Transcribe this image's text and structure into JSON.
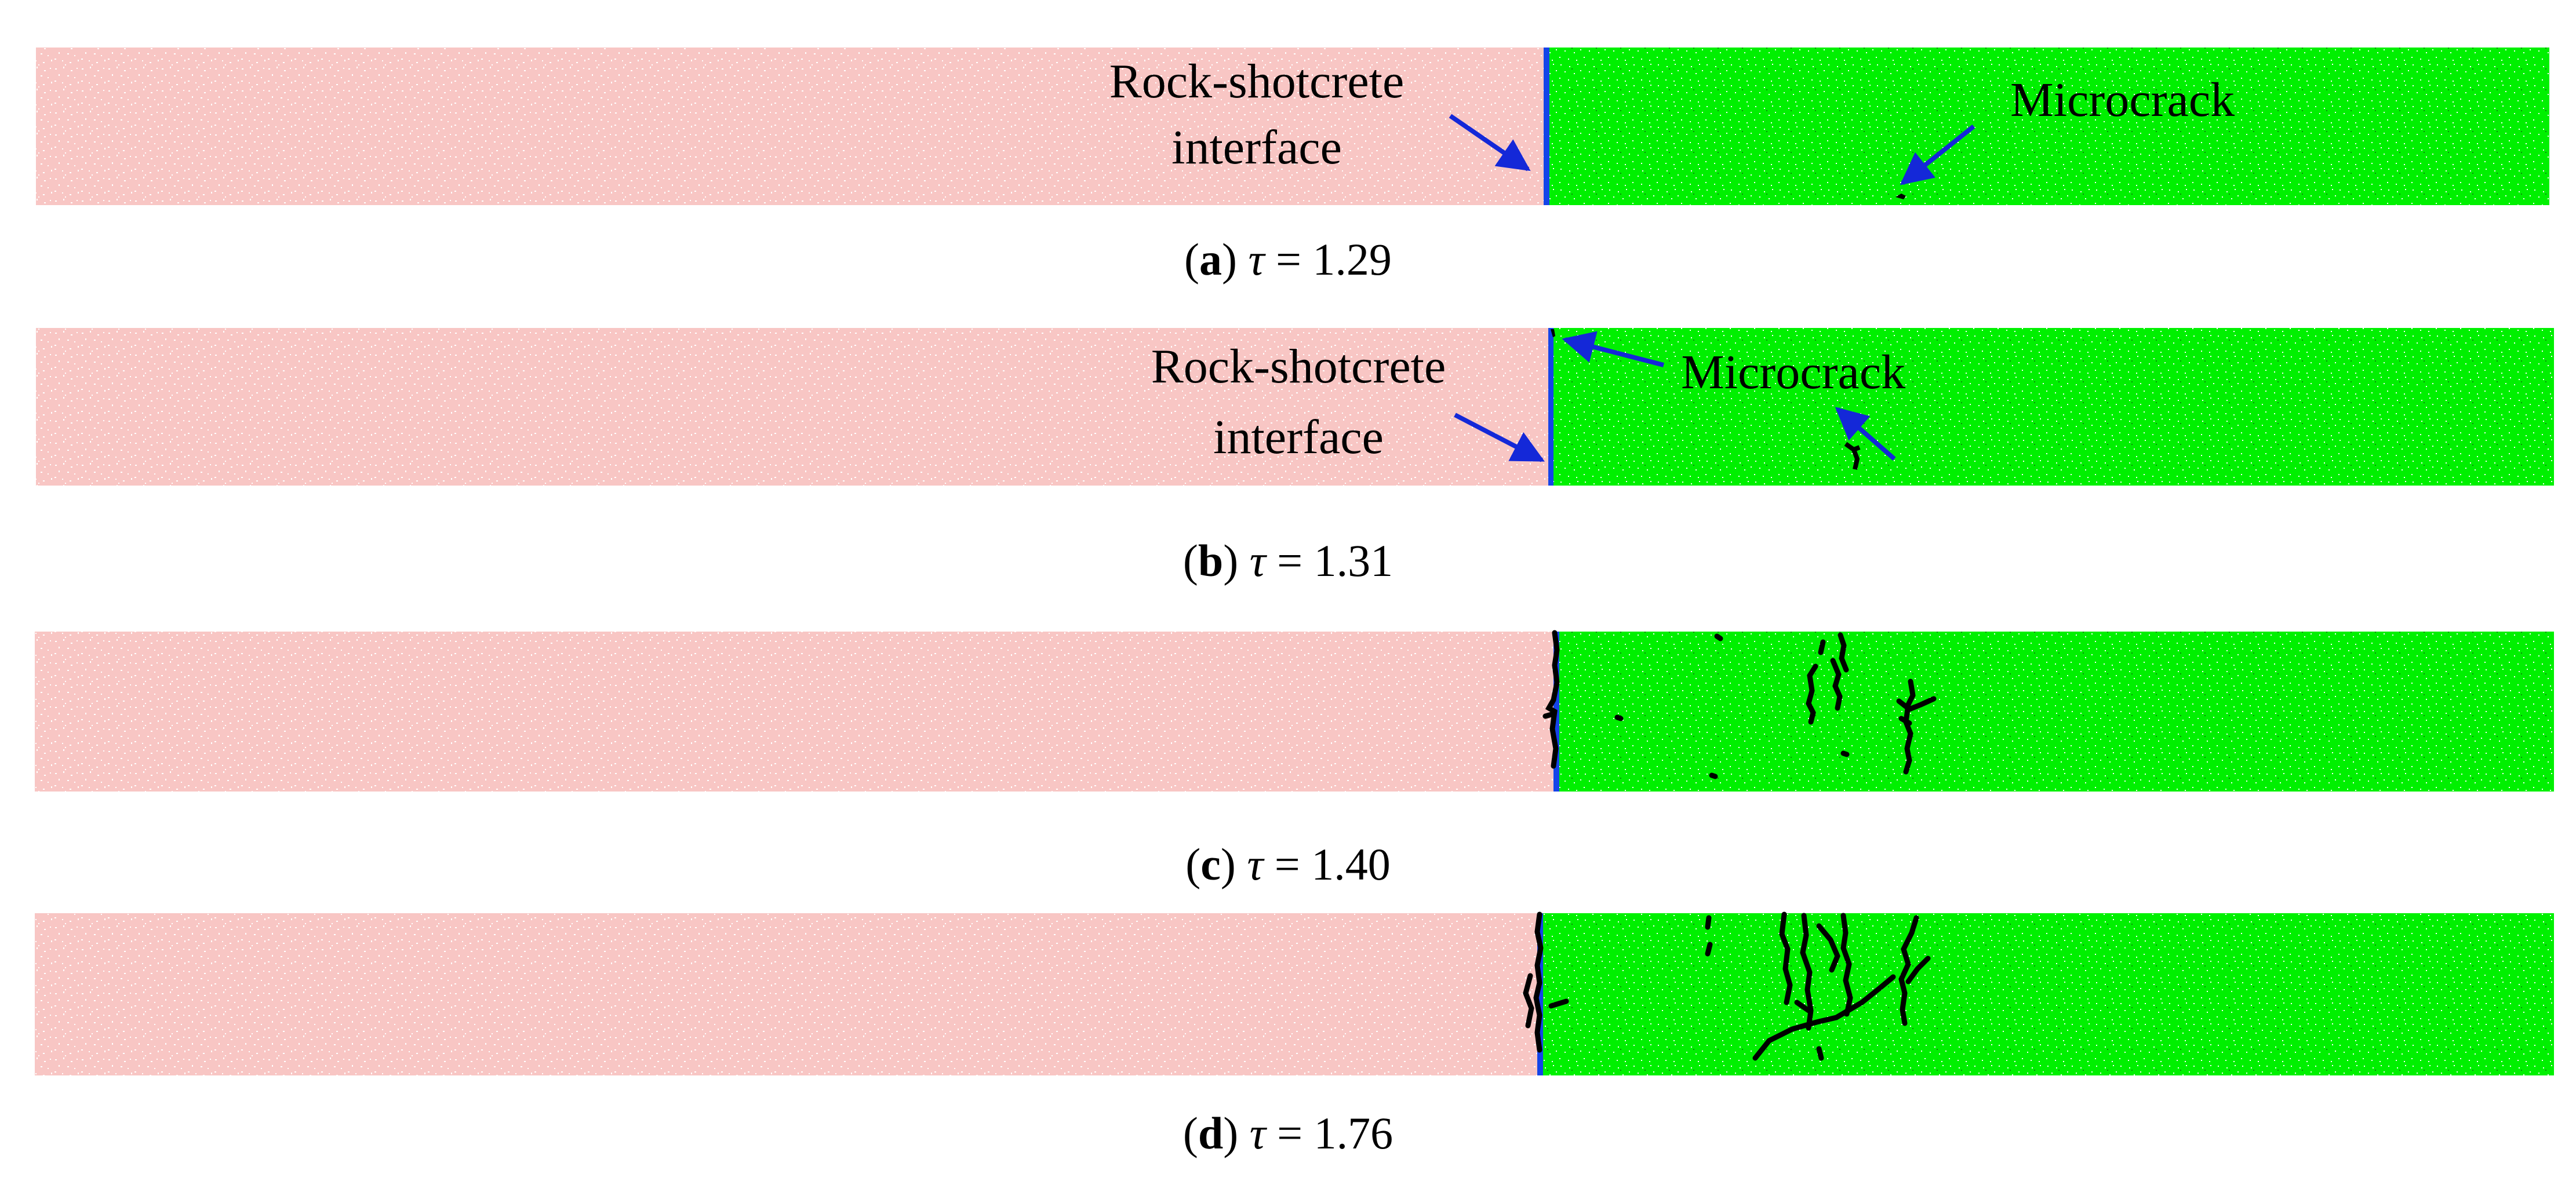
{
  "colors": {
    "rock": "#f8c8c6",
    "shotcrete": "#00f000",
    "interface": "#1444e8",
    "arrow": "#1428d8",
    "crack": "#000000"
  },
  "panels": [
    {
      "id": "a",
      "caption": {
        "letter": "a",
        "symbol": "τ",
        "value": "= 1.29"
      },
      "annotations": {
        "interface_label_line1": "Rock-shotcrete",
        "interface_label_line2": "interface",
        "microcrack_label": "Microcrack"
      }
    },
    {
      "id": "b",
      "caption": {
        "letter": "b",
        "symbol": "τ",
        "value": "= 1.31"
      },
      "annotations": {
        "interface_label_line1": "Rock-shotcrete",
        "interface_label_line2": "interface",
        "microcrack_label": "Microcrack"
      }
    },
    {
      "id": "c",
      "caption": {
        "letter": "c",
        "symbol": "τ",
        "value": "= 1.40"
      }
    },
    {
      "id": "d",
      "caption": {
        "letter": "d",
        "symbol": "τ",
        "value": "= 1.76"
      }
    }
  ]
}
